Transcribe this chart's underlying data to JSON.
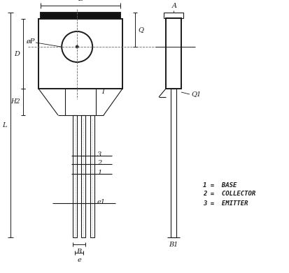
{
  "bg_color": "#ffffff",
  "line_color": "#1a1a1a",
  "fig_width": 4.13,
  "fig_height": 3.91,
  "dpi": 100,
  "legend_text": [
    "1 =  BASE",
    "2 =  COLLECTOR",
    "3 =  EMITTER"
  ]
}
